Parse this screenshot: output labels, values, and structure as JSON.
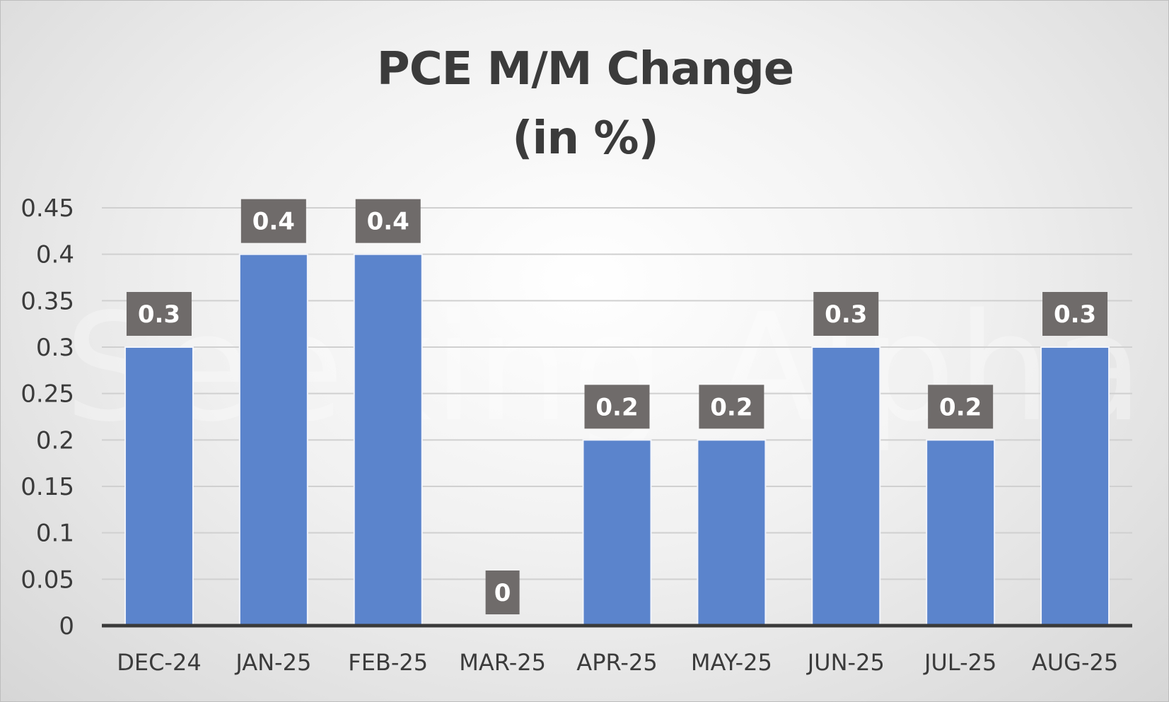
{
  "chart_data": {
    "type": "bar",
    "title_lines": [
      "PCE M/M Change",
      "(in %)"
    ],
    "categories": [
      "DEC-24",
      "JAN-25",
      "FEB-25",
      "MAR-25",
      "APR-25",
      "MAY-25",
      "JUN-25",
      "JUL-25",
      "AUG-25"
    ],
    "values": [
      0.3,
      0.4,
      0.4,
      0,
      0.2,
      0.2,
      0.3,
      0.2,
      0.3
    ],
    "data_labels": [
      "0.3",
      "0.4",
      "0.4",
      "0",
      "0.2",
      "0.2",
      "0.3",
      "0.2",
      "0.3"
    ],
    "y_ticks": [
      "0",
      "0.05",
      "0.1",
      "0.15",
      "0.2",
      "0.25",
      "0.3",
      "0.35",
      "0.4",
      "0.45"
    ],
    "ylim": [
      0,
      0.45
    ],
    "grid": true,
    "legend": "none",
    "watermark": "Seeking Alpha",
    "colors": {
      "bar": "#5b84cc",
      "bar_edge": "#f2f4fa",
      "label_box": "#6f6b6a",
      "grid": "#d0d0d0",
      "axis": "#3a3a3a",
      "text": "#3b3b3b"
    }
  }
}
